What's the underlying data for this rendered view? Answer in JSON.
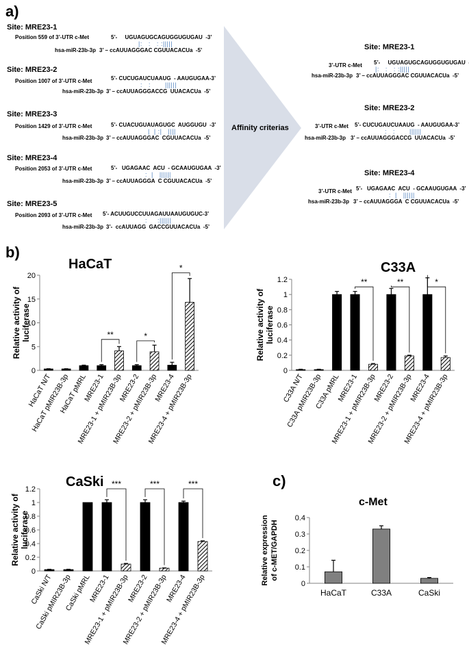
{
  "panel_a": {
    "label": "a)",
    "arrow_label": "Affinity criterias",
    "left_sites": [
      {
        "title": "Site: MRE23-1",
        "position": "Position 559 of 3’-UTR c-Met",
        "mir": "hsa-miR-23b-3p",
        "utr_seq": "5’-     UGUAGUGCAGUGGUGUGAU  -3’",
        "pairs": "|:   :   : :|||||",
        "mir_seq": "3’ – ccAUUAGGGAC CGUUACACUa  -5’"
      },
      {
        "title": "Site: MRE23-2",
        "position": "Position 1007 of 3’-UTR c-Met",
        "mir": "hsa-miR-23b-3p",
        "utr_seq": "5’- CUCUGAUCUAAUG  - AAUGUGAA-3’",
        "pairs": ":   :       ||||||",
        "mir_seq": "3’ – ccAUUAGGGACCG  UUACACUa  -5’"
      },
      {
        "title": "Site: MRE23-3",
        "position": "Position 1429 of 3’-UTR c-Met",
        "mir": "hsa-miR-23b-3p",
        "utr_seq": "5’- CUACUGUAUAGUGC  AUGGUGU  -3’",
        "pairs": "|  | :|   ||||",
        "mir_seq": "3’ – ccAUUAGGGAC  CGUUACACUa  -5’"
      },
      {
        "title": "Site: MRE23-4",
        "position": "Position 2053 of 3’-UTR c-Met",
        "mir": "hsa-miR-23b-3p",
        "utr_seq": "5’-   UGAGAAC  ACU  - GCAAUGUGAA  -3’",
        "pairs": ":  |   ||||||",
        "mir_seq": "3’ – ccAUUAGGGA  C CGUUACACUa  -5’"
      },
      {
        "title": "Site: MRE23-5",
        "position": "Position 2093 of 3’-UTR c-Met",
        "mir": "hsa-miR-23b-3p",
        "utr_seq": "5’- ACUUGUCCUUAGAUUAAUGUGUC-3’",
        "pairs": ":     :||||||",
        "mir_seq": "3’-  ccAUUAGG  GACCGUUACACUa  -5’"
      }
    ],
    "right_sites": [
      {
        "title": "Site: MRE23-1",
        "utr": "3’-UTR c-Met",
        "mir": "hsa-miR-23b-3p",
        "utr_seq": "5’-     UGUAGUGCAGUGGUGUGAU  -3’",
        "pairs": "|:   :   : :|||||",
        "mir_seq": "3’ – ccAUUAGGGAC CGUUACACUa  -5’"
      },
      {
        "title": "Site: MRE23-2",
        "utr": "3’-UTR c-Met",
        "mir": "hsa-miR-23b-3p",
        "utr_seq": "5’- CUCUGAUCUAAUG  - AAUGUGAA-3’",
        "pairs": ":   :       ||||||",
        "mir_seq": "3’ – ccAUUAGGGACCG  UUACACUa  -5’"
      },
      {
        "title": "Site: MRE23-4",
        "utr": "3’-UTR c-Met",
        "mir": "hsa-miR-23b-3p",
        "utr_seq": "5’-   UGAGAAC  ACU  - GCAAUGUGAA  -3’",
        "pairs": ":  |   ||||||",
        "mir_seq": "3’ – ccAUUAGGGA  C CGUUACACUa  -5’"
      }
    ]
  },
  "panel_b_label": "b)",
  "panel_c_label": "c)",
  "colors": {
    "solid_bar": "#000000",
    "hatched_bar": "#000000",
    "gray_bar": "#808080",
    "arrow_fill": "#d9dee8",
    "pair_blue": "#4f80bd"
  },
  "chart_data": [
    {
      "id": "hacat",
      "type": "bar",
      "title": "HaCaT",
      "ylabel": "Relative activity of luciferase",
      "ylim": [
        0,
        20
      ],
      "yticks": [
        0,
        5,
        10,
        15,
        20
      ],
      "categories": [
        "HaCaT N/T",
        "HaCaT pMIR23B-3p",
        "HaCaT pMRL",
        "MRE23-1",
        "MRE23-1 + pMIR23B-3p",
        "MRE23-2",
        "MRE23-2 + pMIR23B-3p",
        "MRE23-4",
        "MRE23-4 + pMIR23B-3p"
      ],
      "values": [
        0.3,
        0.3,
        1.0,
        1.0,
        4.1,
        1.0,
        3.9,
        1.1,
        14.3
      ],
      "errors": [
        0.05,
        0.05,
        0.1,
        0.2,
        0.9,
        0.2,
        1.4,
        0.6,
        5.0
      ],
      "styles": [
        "solid",
        "solid",
        "solid",
        "solid",
        "hatched",
        "solid",
        "hatched",
        "solid",
        "hatched"
      ],
      "significance": [
        {
          "from": 3,
          "to": 4,
          "label": "**",
          "y": 6.5
        },
        {
          "from": 5,
          "to": 6,
          "label": "*",
          "y": 6.2
        },
        {
          "from": 7,
          "to": 8,
          "label": "*",
          "y": 20.5
        }
      ]
    },
    {
      "id": "c33a",
      "type": "bar",
      "title": "C33A",
      "ylabel": "Relative activity of luciferase",
      "ylim": [
        0,
        1.2
      ],
      "yticks": [
        0,
        0.2,
        0.4,
        0.6,
        0.8,
        1,
        1.2
      ],
      "categories": [
        "C33A N/T",
        "C33A pMIR23B-3p",
        "C33A pMRL",
        "MRE23-1",
        "MRE23-1 + pMIR23B-3p",
        "MRE23-2",
        "MRE23-2 + pMIR23B-3p",
        "MRE23-4",
        "MRE23-4 + pMIR23B-3p"
      ],
      "values": [
        0.01,
        0.01,
        1.0,
        1.0,
        0.08,
        1.0,
        0.19,
        1.0,
        0.17
      ],
      "errors": [
        0.005,
        0.005,
        0.04,
        0.04,
        0.01,
        0.08,
        0.01,
        0.22,
        0.02
      ],
      "styles": [
        "solid",
        "solid",
        "solid",
        "solid",
        "hatched",
        "solid",
        "hatched",
        "solid",
        "hatched"
      ],
      "significance": [
        {
          "from": 3,
          "to": 4,
          "label": "**",
          "y": 1.1
        },
        {
          "from": 5,
          "to": 6,
          "label": "**",
          "y": 1.1
        },
        {
          "from": 7,
          "to": 8,
          "label": "*",
          "y": 1.1
        }
      ]
    },
    {
      "id": "caski",
      "type": "bar",
      "title": "CaSki",
      "ylabel": "Relative activity of luciferase",
      "ylim": [
        0,
        1.2
      ],
      "yticks": [
        0,
        0.2,
        0.4,
        0.6,
        0.8,
        1,
        1.2
      ],
      "categories": [
        "CaSki N/T",
        "CaSki pMIR23B-3p",
        "CaSki pMRL",
        "MRE23-1",
        "MRE23-1 + pMIR23B-3p",
        "MRE23-2",
        "MRE23-2 + pMIR23B-3p",
        "MRE23-4",
        "MRE23-4 + pMIR23B-3p"
      ],
      "values": [
        0.02,
        0.02,
        1.0,
        1.0,
        0.1,
        1.0,
        0.04,
        1.0,
        0.43
      ],
      "errors": [
        0.005,
        0.005,
        0.0,
        0.04,
        0.01,
        0.04,
        0.005,
        0.02,
        0.01
      ],
      "styles": [
        "solid",
        "solid",
        "solid",
        "solid",
        "hatched",
        "solid",
        "hatched",
        "solid",
        "hatched"
      ],
      "significance": [
        {
          "from": 3,
          "to": 4,
          "label": "***",
          "y": 1.2
        },
        {
          "from": 5,
          "to": 6,
          "label": "***",
          "y": 1.2
        },
        {
          "from": 7,
          "to": 8,
          "label": "***",
          "y": 1.2
        }
      ]
    },
    {
      "id": "cmet",
      "type": "bar",
      "title": "c-Met",
      "ylabel": "Relative expression of c-MET/GAPDH",
      "ylim": [
        0,
        0.4
      ],
      "yticks": [
        0,
        0.1,
        0.2,
        0.3,
        0.4
      ],
      "categories": [
        "HaCaT",
        "C33A",
        "CaSki"
      ],
      "values": [
        0.07,
        0.33,
        0.03
      ],
      "errors": [
        0.07,
        0.02,
        0.005
      ],
      "styles": [
        "gray",
        "gray",
        "gray"
      ],
      "significance": []
    }
  ]
}
